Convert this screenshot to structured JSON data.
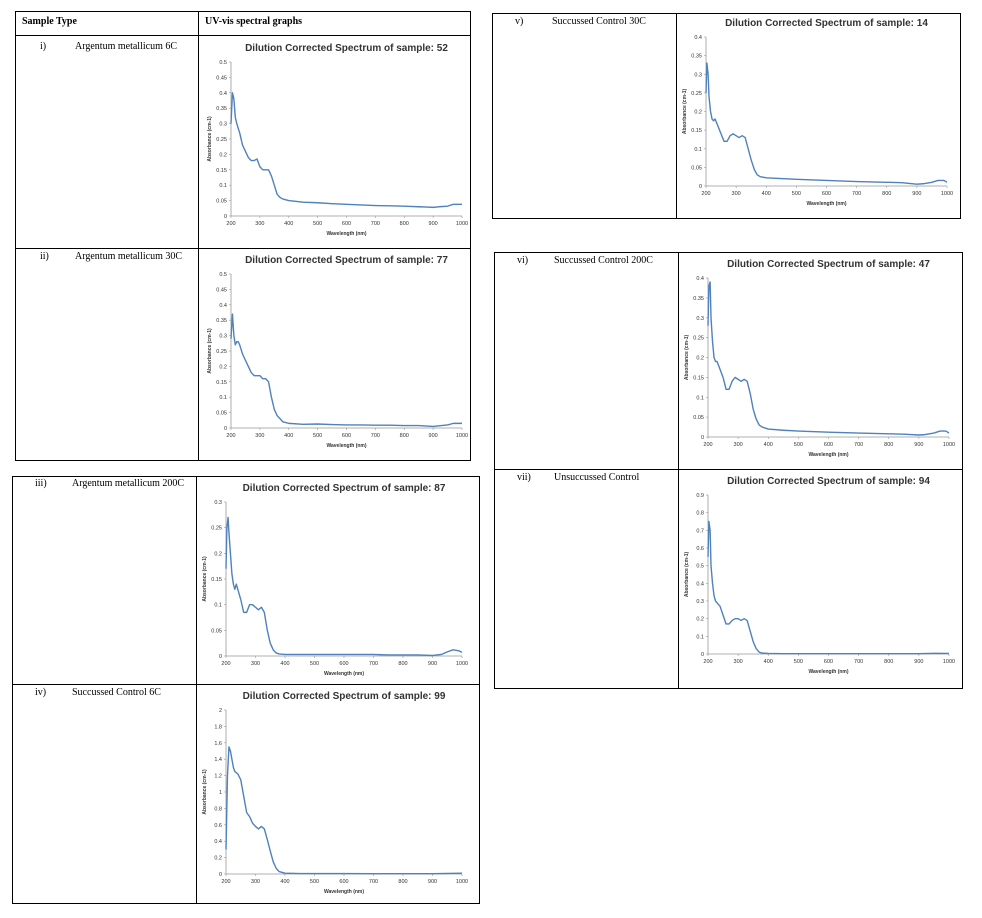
{
  "header": {
    "sample_type": "Sample Type",
    "spectral": "UV-vis spectral graphs"
  },
  "rows": [
    {
      "num": "i)",
      "label": "Argentum metallicum 6C"
    },
    {
      "num": "ii)",
      "label": "Argentum metallicum 30C"
    },
    {
      "num": "iii)",
      "label": "Argentum metallicum 200C"
    },
    {
      "num": "iv)",
      "label": "Succussed Control 6C"
    },
    {
      "num": "v)",
      "label": "Succussed Control 30C"
    },
    {
      "num": "vi)",
      "label": "Succussed Control 200C"
    },
    {
      "num": "vii)",
      "label": "Unsuccussed Control"
    }
  ],
  "chart_data": [
    {
      "type": "line",
      "title": "Dilution Corrected Spectrum of sample: 52",
      "xlabel": "Wavelength (nm)",
      "ylabel": "Absorbance (cm-1)",
      "xlim": [
        200,
        1000
      ],
      "ylim": [
        0,
        0.5
      ],
      "xticks": [
        200,
        300,
        400,
        500,
        600,
        700,
        800,
        900,
        1000
      ],
      "yticks": [
        0,
        0.05,
        0.1,
        0.15,
        0.2,
        0.25,
        0.3,
        0.35,
        0.4,
        0.45,
        0.5
      ],
      "series": [
        {
          "x": [
            200,
            205,
            210,
            215,
            220,
            230,
            240,
            250,
            260,
            270,
            280,
            290,
            300,
            310,
            320,
            330,
            340,
            350,
            360,
            370,
            380,
            400,
            450,
            500,
            550,
            600,
            650,
            700,
            750,
            800,
            850,
            880,
            900,
            920,
            950,
            970,
            1000
          ],
          "y": [
            0.3,
            0.4,
            0.38,
            0.32,
            0.3,
            0.27,
            0.23,
            0.21,
            0.19,
            0.18,
            0.18,
            0.185,
            0.16,
            0.15,
            0.15,
            0.15,
            0.13,
            0.1,
            0.07,
            0.06,
            0.055,
            0.05,
            0.045,
            0.043,
            0.04,
            0.038,
            0.036,
            0.034,
            0.033,
            0.032,
            0.03,
            0.029,
            0.028,
            0.03,
            0.032,
            0.038,
            0.038
          ]
        }
      ]
    },
    {
      "type": "line",
      "title": "Dilution Corrected Spectrum of sample: 77",
      "xlabel": "Wavelength (nm)",
      "ylabel": "Absorbance (cm-1)",
      "xlim": [
        200,
        1000
      ],
      "ylim": [
        0,
        0.5
      ],
      "xticks": [
        200,
        300,
        400,
        500,
        600,
        700,
        800,
        900,
        1000
      ],
      "yticks": [
        0,
        0.05,
        0.1,
        0.15,
        0.2,
        0.25,
        0.3,
        0.35,
        0.4,
        0.45,
        0.5
      ],
      "series": [
        {
          "x": [
            200,
            205,
            210,
            215,
            220,
            225,
            230,
            240,
            250,
            260,
            270,
            280,
            290,
            300,
            310,
            320,
            330,
            340,
            350,
            360,
            370,
            380,
            400,
            450,
            500,
            550,
            600,
            650,
            700,
            750,
            800,
            850,
            900,
            920,
            950,
            970,
            1000
          ],
          "y": [
            0.29,
            0.37,
            0.3,
            0.27,
            0.28,
            0.28,
            0.27,
            0.24,
            0.22,
            0.2,
            0.18,
            0.17,
            0.17,
            0.17,
            0.16,
            0.16,
            0.15,
            0.1,
            0.06,
            0.04,
            0.03,
            0.02,
            0.015,
            0.012,
            0.013,
            0.011,
            0.01,
            0.01,
            0.009,
            0.009,
            0.008,
            0.008,
            0.005,
            0.007,
            0.01,
            0.015,
            0.015
          ]
        }
      ]
    },
    {
      "type": "line",
      "title": "Dilution Corrected Spectrum of sample: 87",
      "xlabel": "Wavelength (nm)",
      "ylabel": "Absorbance (cm-1)",
      "xlim": [
        200,
        1000
      ],
      "ylim": [
        0,
        0.3
      ],
      "xticks": [
        200,
        300,
        400,
        500,
        600,
        700,
        800,
        900,
        1000
      ],
      "yticks": [
        0,
        0.05,
        0.1,
        0.15,
        0.2,
        0.25,
        0.3
      ],
      "series": [
        {
          "x": [
            200,
            203,
            207,
            210,
            215,
            220,
            225,
            230,
            235,
            240,
            250,
            260,
            270,
            280,
            290,
            300,
            310,
            320,
            330,
            340,
            350,
            360,
            370,
            380,
            400,
            450,
            500,
            550,
            600,
            650,
            700,
            750,
            800,
            850,
            900,
            930,
            950,
            970,
            990,
            1000
          ],
          "y": [
            0.17,
            0.25,
            0.27,
            0.24,
            0.2,
            0.16,
            0.14,
            0.13,
            0.14,
            0.13,
            0.11,
            0.085,
            0.085,
            0.1,
            0.1,
            0.095,
            0.09,
            0.095,
            0.085,
            0.05,
            0.025,
            0.012,
            0.006,
            0.004,
            0.003,
            0.003,
            0.003,
            0.003,
            0.003,
            0.003,
            0.003,
            0.002,
            0.002,
            0.002,
            0.001,
            0.003,
            0.008,
            0.012,
            0.01,
            0.007
          ]
        }
      ]
    },
    {
      "type": "line",
      "title": "Dilution Corrected Spectrum of sample: 99",
      "xlabel": "Wavelength (nm)",
      "ylabel": "Absorbance (cm-1)",
      "xlim": [
        200,
        1000
      ],
      "ylim": [
        0,
        2
      ],
      "xticks": [
        200,
        300,
        400,
        500,
        600,
        700,
        800,
        900,
        1000
      ],
      "yticks": [
        0,
        0.2,
        0.4,
        0.6,
        0.8,
        1,
        1.2,
        1.4,
        1.6,
        1.8,
        2
      ],
      "series": [
        {
          "x": [
            200,
            205,
            210,
            215,
            220,
            225,
            230,
            240,
            250,
            260,
            270,
            280,
            290,
            300,
            310,
            320,
            330,
            340,
            350,
            360,
            370,
            380,
            400,
            450,
            500,
            600,
            700,
            800,
            900,
            1000
          ],
          "y": [
            0.3,
            1.2,
            1.55,
            1.5,
            1.4,
            1.3,
            1.25,
            1.22,
            1.15,
            0.95,
            0.75,
            0.7,
            0.62,
            0.58,
            0.55,
            0.58,
            0.55,
            0.42,
            0.28,
            0.15,
            0.07,
            0.03,
            0.01,
            0.005,
            0.005,
            0.005,
            0.004,
            0.004,
            0.004,
            0.01
          ]
        }
      ]
    },
    {
      "type": "line",
      "title": "Dilution Corrected Spectrum of sample: 14",
      "xlabel": "Wavelength (nm)",
      "ylabel": "Absorbance (cm-1)",
      "xlim": [
        200,
        1000
      ],
      "ylim": [
        0,
        0.4
      ],
      "xticks": [
        200,
        300,
        400,
        500,
        600,
        700,
        800,
        900,
        1000
      ],
      "yticks": [
        0,
        0.05,
        0.1,
        0.15,
        0.2,
        0.25,
        0.3,
        0.35,
        0.4
      ],
      "series": [
        {
          "x": [
            200,
            203,
            207,
            210,
            215,
            220,
            225,
            230,
            240,
            250,
            260,
            270,
            280,
            290,
            300,
            310,
            320,
            330,
            340,
            350,
            360,
            370,
            380,
            400,
            450,
            500,
            600,
            700,
            800,
            850,
            900,
            920,
            950,
            970,
            990,
            1000
          ],
          "y": [
            0.25,
            0.33,
            0.3,
            0.24,
            0.2,
            0.18,
            0.175,
            0.18,
            0.16,
            0.14,
            0.12,
            0.12,
            0.135,
            0.14,
            0.135,
            0.13,
            0.135,
            0.13,
            0.1,
            0.07,
            0.045,
            0.03,
            0.025,
            0.022,
            0.02,
            0.018,
            0.015,
            0.012,
            0.01,
            0.009,
            0.005,
            0.006,
            0.01,
            0.015,
            0.015,
            0.01
          ]
        }
      ]
    },
    {
      "type": "line",
      "title": "Dilution Corrected Spectrum of sample: 47",
      "xlabel": "Wavelength (nm)",
      "ylabel": "Absorbance (cm-1)",
      "xlim": [
        200,
        1000
      ],
      "ylim": [
        0,
        0.4
      ],
      "xticks": [
        200,
        300,
        400,
        500,
        600,
        700,
        800,
        900,
        1000
      ],
      "yticks": [
        0,
        0.05,
        0.1,
        0.15,
        0.2,
        0.25,
        0.3,
        0.35,
        0.4
      ],
      "series": [
        {
          "x": [
            200,
            203,
            207,
            210,
            215,
            220,
            225,
            230,
            240,
            250,
            260,
            270,
            280,
            290,
            300,
            310,
            320,
            330,
            340,
            350,
            360,
            370,
            380,
            400,
            450,
            500,
            600,
            700,
            800,
            850,
            900,
            920,
            950,
            970,
            990,
            1000
          ],
          "y": [
            0.28,
            0.38,
            0.39,
            0.3,
            0.24,
            0.2,
            0.19,
            0.19,
            0.17,
            0.15,
            0.12,
            0.12,
            0.14,
            0.15,
            0.145,
            0.14,
            0.145,
            0.14,
            0.11,
            0.07,
            0.045,
            0.03,
            0.025,
            0.02,
            0.017,
            0.015,
            0.012,
            0.01,
            0.008,
            0.007,
            0.005,
            0.006,
            0.01,
            0.015,
            0.015,
            0.01
          ]
        }
      ]
    },
    {
      "type": "line",
      "title": "Dilution Corrected Spectrum of sample: 94",
      "xlabel": "Wavelength (nm)",
      "ylabel": "Absorbance (cm-1)",
      "xlim": [
        200,
        1000
      ],
      "ylim": [
        0,
        0.9
      ],
      "xticks": [
        200,
        300,
        400,
        500,
        600,
        700,
        800,
        900,
        1000
      ],
      "yticks": [
        0,
        0.1,
        0.2,
        0.3,
        0.4,
        0.5,
        0.6,
        0.7,
        0.8,
        0.9
      ],
      "series": [
        {
          "x": [
            200,
            203,
            207,
            210,
            215,
            220,
            225,
            230,
            240,
            250,
            260,
            270,
            280,
            290,
            300,
            310,
            320,
            330,
            340,
            350,
            360,
            370,
            380,
            400,
            450,
            500,
            600,
            700,
            800,
            900,
            950,
            1000
          ],
          "y": [
            0.55,
            0.75,
            0.7,
            0.5,
            0.4,
            0.33,
            0.3,
            0.29,
            0.27,
            0.22,
            0.17,
            0.17,
            0.19,
            0.2,
            0.2,
            0.19,
            0.2,
            0.19,
            0.13,
            0.07,
            0.03,
            0.01,
            0.005,
            0.003,
            0.002,
            0.002,
            0.002,
            0.002,
            0.002,
            0.002,
            0.004,
            0.003
          ]
        }
      ]
    }
  ],
  "colors": {
    "line": "#4f81bd",
    "axis": "#999999",
    "border": "#000000"
  }
}
